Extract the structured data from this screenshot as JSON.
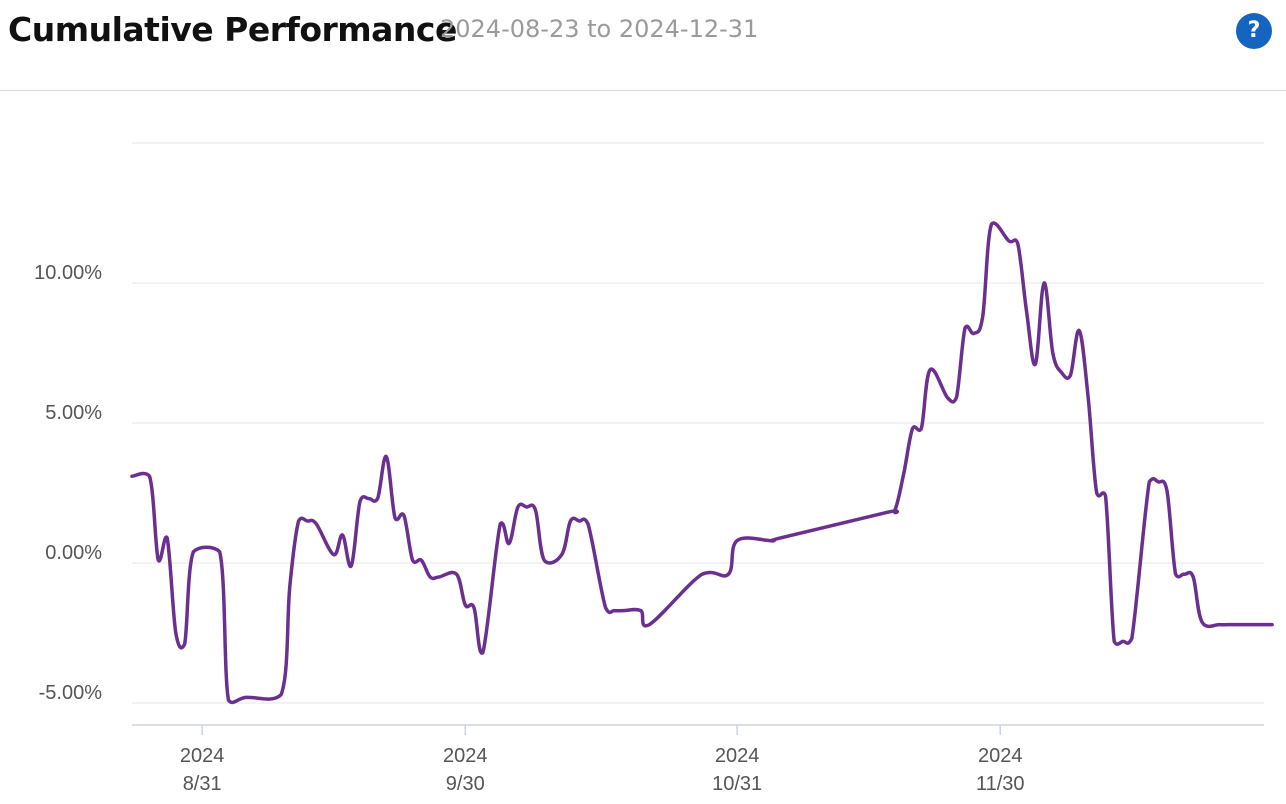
{
  "header": {
    "title": "Cumulative Performance",
    "date_range": "2024-08-23 to 2024-12-31",
    "help_label": "?"
  },
  "colors": {
    "series": "#6a2f8f",
    "grid": "#e4e4e4",
    "axis": "#c9d4e3",
    "help_button": "#1565c0"
  },
  "chart_data": {
    "type": "line",
    "title": "",
    "xlabel": "",
    "ylabel": "",
    "ylim": [
      -5.5,
      15
    ],
    "y_ticks": [
      {
        "value": 10,
        "label": "10.00%"
      },
      {
        "value": 5,
        "label": "5.00%"
      },
      {
        "value": 0,
        "label": "0.00%"
      },
      {
        "value": -5,
        "label": "-5.00%"
      }
    ],
    "x_ticks": [
      {
        "date": "2024-08-31",
        "year": "2024",
        "label": "8/31"
      },
      {
        "date": "2024-09-30",
        "year": "2024",
        "label": "9/30"
      },
      {
        "date": "2024-10-31",
        "year": "2024",
        "label": "10/31"
      },
      {
        "date": "2024-11-30",
        "year": "2024",
        "label": "11/30"
      }
    ],
    "grid": true,
    "series": [
      {
        "x": [
          "2024-08-23",
          "2024-08-25",
          "2024-08-26",
          "2024-08-27",
          "2024-08-28",
          "2024-08-29",
          "2024-08-30",
          "2024-09-02",
          "2024-09-03",
          "2024-09-05",
          "2024-09-09",
          "2024-09-10",
          "2024-09-11",
          "2024-09-12",
          "2024-09-13",
          "2024-09-15",
          "2024-09-16",
          "2024-09-17",
          "2024-09-18",
          "2024-09-19",
          "2024-09-20",
          "2024-09-21",
          "2024-09-22",
          "2024-09-23",
          "2024-09-24",
          "2024-09-25",
          "2024-09-26",
          "2024-09-27",
          "2024-09-29",
          "2024-09-30",
          "2024-10-01",
          "2024-10-02",
          "2024-10-04",
          "2024-10-05",
          "2024-10-06",
          "2024-10-07",
          "2024-10-08",
          "2024-10-09",
          "2024-10-11",
          "2024-10-12",
          "2024-10-13",
          "2024-10-14",
          "2024-10-16",
          "2024-10-17",
          "2024-10-18",
          "2024-10-20",
          "2024-10-21",
          "2024-10-27",
          "2024-10-30",
          "2024-10-31",
          "2024-11-04",
          "2024-11-05",
          "2024-11-17",
          "2024-11-18",
          "2024-11-19",
          "2024-11-20",
          "2024-11-21",
          "2024-11-22",
          "2024-11-24",
          "2024-11-25",
          "2024-11-26",
          "2024-11-27",
          "2024-11-28",
          "2024-11-29",
          "2024-12-01",
          "2024-12-02",
          "2024-12-03",
          "2024-12-04",
          "2024-12-05",
          "2024-12-06",
          "2024-12-07",
          "2024-12-08",
          "2024-12-09",
          "2024-12-10",
          "2024-12-11",
          "2024-12-12",
          "2024-12-13",
          "2024-12-14",
          "2024-12-15",
          "2024-12-17",
          "2024-12-18",
          "2024-12-19",
          "2024-12-20",
          "2024-12-21",
          "2024-12-22",
          "2024-12-23",
          "2024-12-25",
          "2024-12-26",
          "2024-12-28",
          "2024-12-29",
          "2024-12-30",
          "2024-12-31"
        ],
        "values": [
          3.1,
          3.1,
          0.1,
          0.9,
          -2.5,
          -2.9,
          0.4,
          0.4,
          -4.9,
          -4.8,
          -4.7,
          -0.8,
          1.5,
          1.5,
          1.4,
          0.3,
          1.0,
          -0.1,
          2.2,
          2.3,
          2.3,
          3.8,
          1.6,
          1.7,
          0.1,
          0.1,
          -0.5,
          -0.5,
          -0.4,
          -1.5,
          -1.6,
          -3.2,
          1.4,
          0.7,
          2.0,
          2.0,
          1.9,
          0.1,
          0.3,
          1.5,
          1.5,
          1.4,
          -1.6,
          -1.7,
          -1.7,
          -1.7,
          -2.2,
          -0.4,
          -0.4,
          0.8,
          0.8,
          0.9,
          1.8,
          1.9,
          3.2,
          4.8,
          4.8,
          6.9,
          5.9,
          5.9,
          8.4,
          8.2,
          8.8,
          12.1,
          11.5,
          11.4,
          9.0,
          7.1,
          10.0,
          7.5,
          6.8,
          6.7,
          8.3,
          6.0,
          2.5,
          2.4,
          -2.8,
          -2.8,
          -2.7,
          2.9,
          2.9,
          2.6,
          -0.4,
          -0.4,
          -0.5,
          -2.1,
          -2.2,
          -2.2,
          -2.2,
          -2.2,
          -2.2,
          -2.2
        ]
      }
    ]
  }
}
